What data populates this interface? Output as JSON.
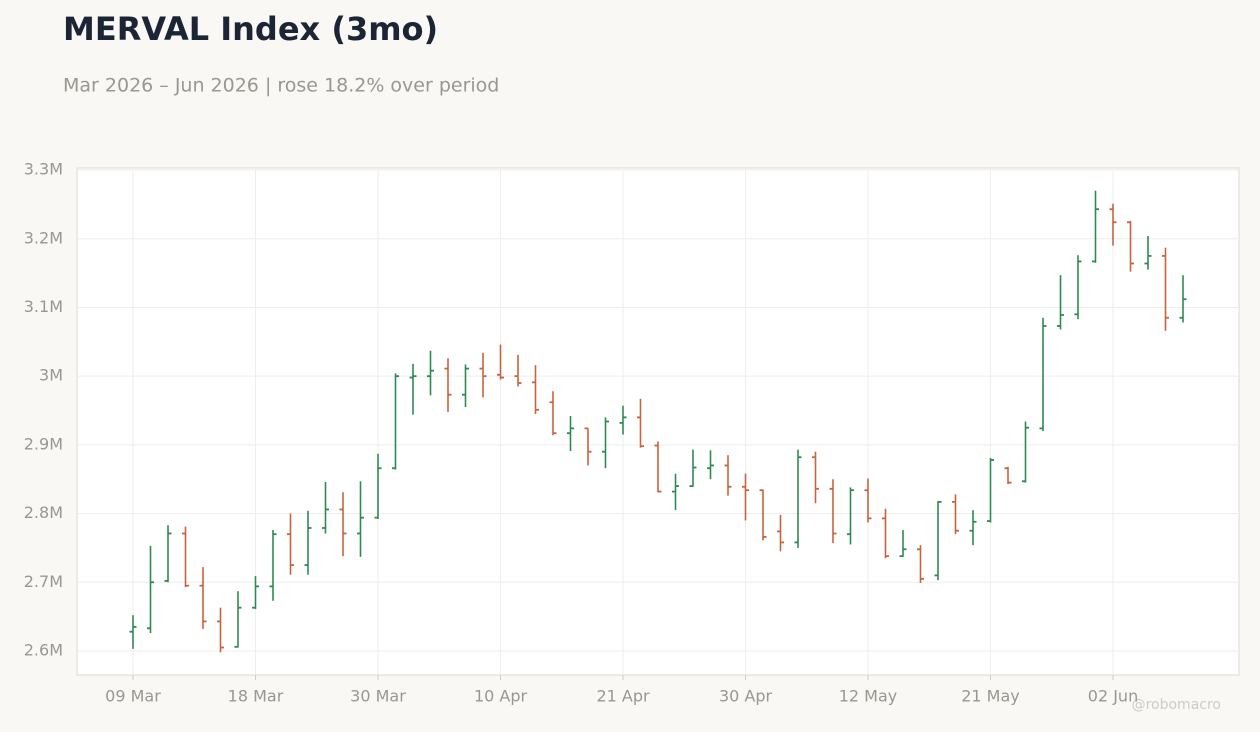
{
  "chart_data": {
    "type": "ohlc",
    "title": "MERVAL Index (3mo)",
    "subtitle": "Mar 2026 – Jun 2026 | rose 18.2% over period",
    "watermark": "@robomacro",
    "up_color": "#2e8a52",
    "down_color": "#c8633e",
    "grid": true,
    "categories": [
      "09 Mar",
      null,
      null,
      null,
      null,
      null,
      null,
      "18 Mar",
      null,
      null,
      null,
      null,
      null,
      null,
      "30 Mar",
      null,
      null,
      null,
      null,
      null,
      null,
      "10 Apr",
      null,
      null,
      null,
      null,
      null,
      null,
      "21 Apr",
      null,
      null,
      null,
      null,
      null,
      null,
      "30 Apr",
      null,
      null,
      null,
      null,
      null,
      null,
      "12 May",
      null,
      null,
      null,
      null,
      null,
      null,
      "21 May",
      null,
      null,
      null,
      null,
      null,
      null,
      "02 Jun",
      null,
      null,
      null,
      null
    ],
    "open": [
      2628000,
      2633000,
      2702000,
      2771000,
      2695000,
      2643000,
      2606000,
      2663000,
      2694000,
      2770000,
      2725000,
      2779000,
      2806000,
      2771000,
      2794000,
      2866000,
      2998000,
      3000000,
      3011000,
      2973000,
      3011000,
      3002000,
      3000000,
      2991000,
      2962000,
      2917000,
      2924000,
      2890000,
      2932000,
      2940000,
      2899000,
      2832000,
      2840000,
      2866000,
      2870000,
      2839000,
      2834000,
      2774000,
      2758000,
      2882000,
      2836000,
      2770000,
      2834000,
      2793000,
      2738000,
      2748000,
      2710000,
      2817000,
      2775000,
      2789000,
      2866000,
      2847000,
      2924000,
      3073000,
      3090000,
      3167000,
      3243000,
      3224000,
      3164000,
      3175000,
      3085000
    ],
    "high": [
      2652000,
      2753000,
      2783000,
      2781000,
      2722000,
      2663000,
      2687000,
      2709000,
      2776000,
      2800000,
      2804000,
      2846000,
      2831000,
      2847000,
      2887000,
      3004000,
      3018000,
      3037000,
      3026000,
      3017000,
      3034000,
      3046000,
      3031000,
      3016000,
      2978000,
      2942000,
      2924000,
      2940000,
      2957000,
      2967000,
      2905000,
      2858000,
      2893000,
      2892000,
      2885000,
      2858000,
      2835000,
      2798000,
      2893000,
      2890000,
      2850000,
      2838000,
      2851000,
      2807000,
      2776000,
      2754000,
      2818000,
      2828000,
      2805000,
      2881000,
      2868000,
      2934000,
      3085000,
      3147000,
      3176000,
      3270000,
      3251000,
      3226000,
      3204000,
      3187000,
      3147000
    ],
    "low": [
      2603000,
      2626000,
      2700000,
      2693000,
      2632000,
      2598000,
      2605000,
      2661000,
      2673000,
      2711000,
      2711000,
      2771000,
      2738000,
      2737000,
      2792000,
      2864000,
      2944000,
      2972000,
      2948000,
      2955000,
      2969000,
      2995000,
      2985000,
      2945000,
      2914000,
      2891000,
      2870000,
      2866000,
      2915000,
      2896000,
      2831000,
      2805000,
      2839000,
      2850000,
      2826000,
      2790000,
      2761000,
      2745000,
      2750000,
      2815000,
      2757000,
      2755000,
      2787000,
      2735000,
      2737000,
      2699000,
      2703000,
      2770000,
      2754000,
      2787000,
      2843000,
      2845000,
      2920000,
      3068000,
      3083000,
      3165000,
      3190000,
      3152000,
      3155000,
      3066000,
      3078000
    ],
    "close": [
      2635000,
      2700000,
      2771000,
      2695000,
      2643000,
      2605000,
      2663000,
      2694000,
      2770000,
      2725000,
      2779000,
      2806000,
      2771000,
      2794000,
      2866000,
      3000000,
      3000000,
      3008000,
      2973000,
      3011000,
      3000000,
      2998000,
      2990000,
      2951000,
      2917000,
      2924000,
      2890000,
      2934000,
      2940000,
      2898000,
      2832000,
      2840000,
      2867000,
      2870000,
      2839000,
      2834000,
      2766000,
      2758000,
      2882000,
      2836000,
      2771000,
      2834000,
      2793000,
      2738000,
      2748000,
      2705000,
      2817000,
      2775000,
      2788000,
      2878000,
      2845000,
      2925000,
      3073000,
      3089000,
      3167000,
      3243000,
      3224000,
      3164000,
      3175000,
      3085000,
      3112000
    ],
    "ylim": [
      2565000,
      3303000
    ],
    "yticks": [
      {
        "value": 2600000,
        "label": "2.6M"
      },
      {
        "value": 2700000,
        "label": "2.7M"
      },
      {
        "value": 2800000,
        "label": "2.8M"
      },
      {
        "value": 2900000,
        "label": "2.9M"
      },
      {
        "value": 3000000,
        "label": "3M"
      },
      {
        "value": 3100000,
        "label": "3.1M"
      },
      {
        "value": 3200000,
        "label": "3.2M"
      },
      {
        "value": 3300000,
        "label": "3.3M"
      }
    ]
  }
}
